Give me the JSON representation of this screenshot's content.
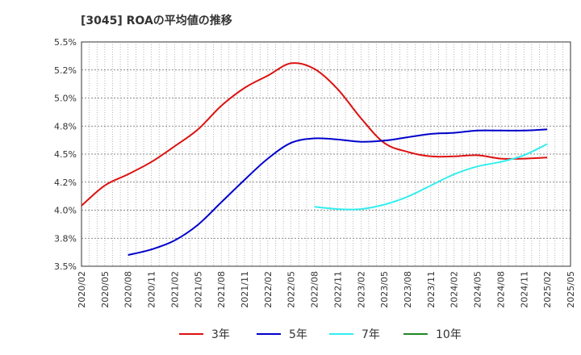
{
  "chart_data": {
    "type": "line",
    "title": "[3045]  ROAの平均値の推移",
    "xlabel": "",
    "ylabel": "",
    "x": [
      "2020/02",
      "2020/05",
      "2020/08",
      "2020/11",
      "2021/02",
      "2021/05",
      "2021/08",
      "2021/11",
      "2022/02",
      "2022/05",
      "2022/08",
      "2022/11",
      "2023/02",
      "2023/05",
      "2023/08",
      "2023/11",
      "2024/02",
      "2024/05",
      "2024/08",
      "2024/11",
      "2025/02",
      "2025/05"
    ],
    "ylim": [
      3.5,
      5.5
    ],
    "yticks": [
      "3.5%",
      "3.8%",
      "4.0%",
      "4.2%",
      "4.5%",
      "4.8%",
      "5.0%",
      "5.2%",
      "5.5%"
    ],
    "grid": true,
    "legend_position": "bottom",
    "series": [
      {
        "name": "3年",
        "color": "#dd1111",
        "values": [
          4.04,
          4.22,
          4.32,
          4.43,
          4.57,
          4.72,
          4.93,
          5.09,
          5.2,
          5.31,
          5.26,
          5.08,
          4.82,
          4.6,
          4.52,
          4.48,
          4.48,
          4.49,
          4.46,
          4.46,
          4.47,
          null
        ]
      },
      {
        "name": "5年",
        "color": "#0000cc",
        "values": [
          null,
          null,
          3.6,
          3.65,
          3.73,
          3.87,
          4.07,
          4.27,
          4.46,
          4.6,
          4.64,
          4.63,
          4.61,
          4.62,
          4.65,
          4.68,
          4.69,
          4.71,
          4.71,
          4.71,
          4.72,
          null
        ]
      },
      {
        "name": "7年",
        "color": "#33eeee",
        "values": [
          null,
          null,
          null,
          null,
          null,
          null,
          null,
          null,
          null,
          null,
          4.03,
          4.01,
          4.01,
          4.05,
          4.12,
          4.22,
          4.32,
          4.39,
          4.43,
          4.49,
          4.59,
          null
        ]
      },
      {
        "name": "10年",
        "color": "#228822",
        "values": [
          null,
          null,
          null,
          null,
          null,
          null,
          null,
          null,
          null,
          null,
          null,
          null,
          null,
          null,
          null,
          null,
          null,
          null,
          null,
          null,
          null,
          null
        ]
      }
    ]
  }
}
